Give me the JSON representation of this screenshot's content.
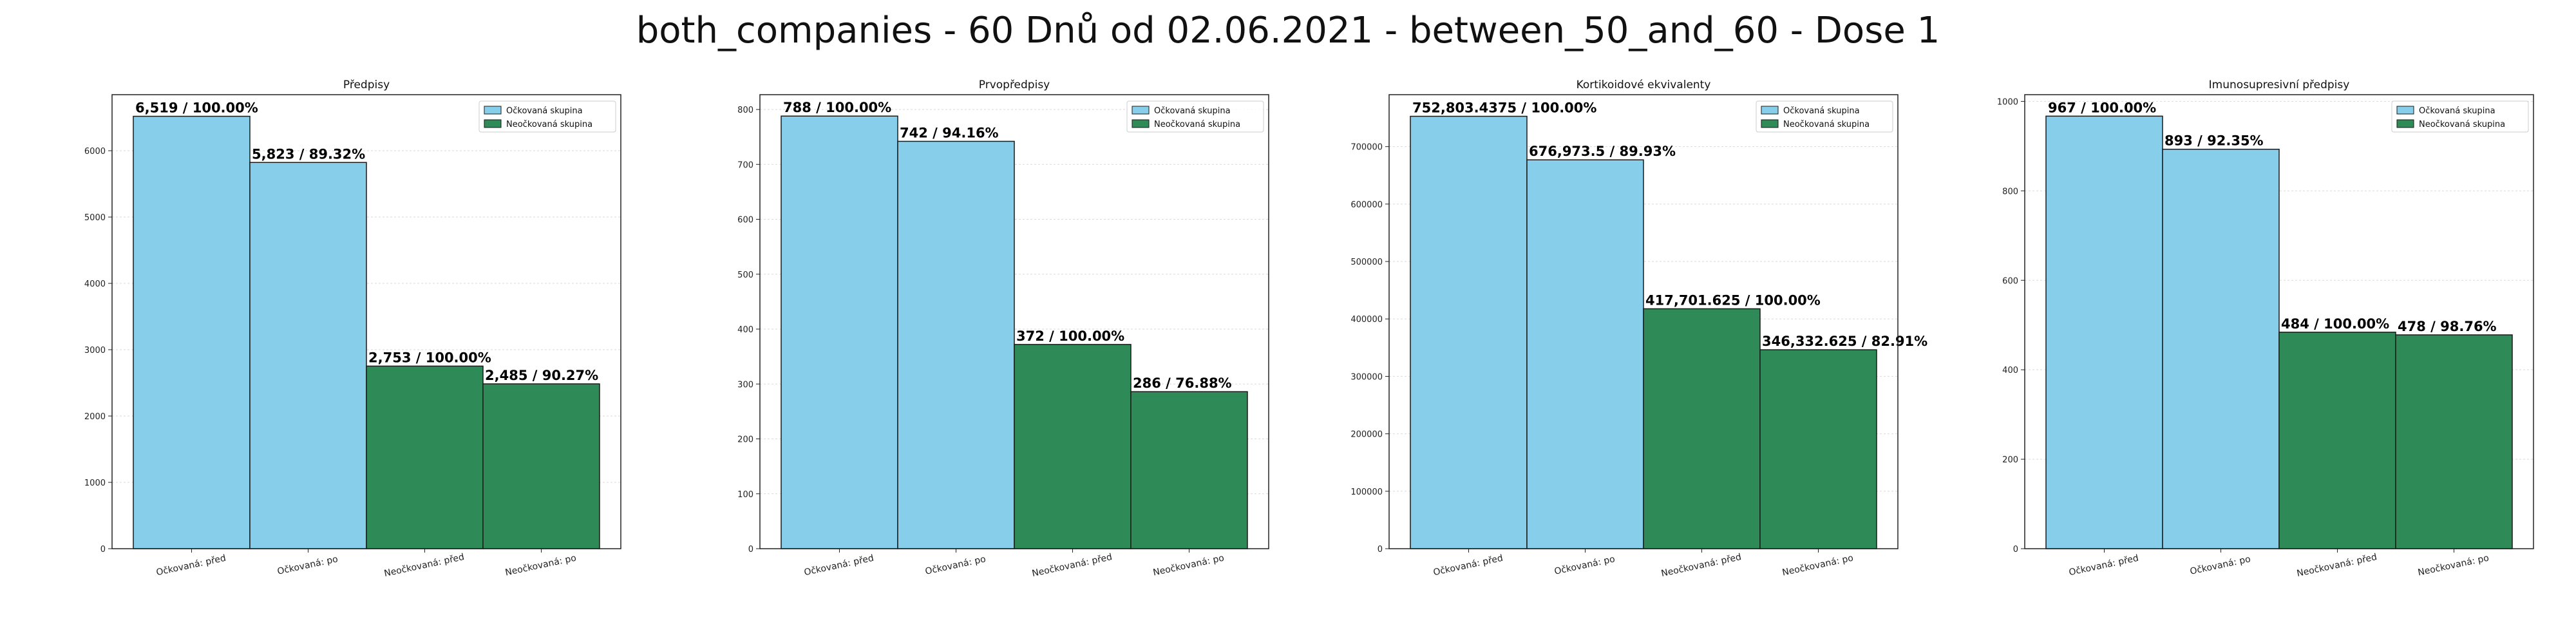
{
  "title": "both_companies - 60 Dnů od 02.06.2021 - between_50_and_60 - Dose 1",
  "colors": {
    "vaccinated": "#87CEEB",
    "unvaccinated": "#2E8B57"
  },
  "legend": [
    "Očkovaná skupina",
    "Neočkovaná skupina"
  ],
  "chart_data": [
    {
      "type": "bar",
      "title": "Předpisy",
      "categories": [
        "Očkovaná: před",
        "Očkovaná: po",
        "Neočkovaná: před",
        "Neočkovaná: po"
      ],
      "values": [
        6519,
        5823,
        2753,
        2485
      ],
      "labels": [
        "6,519 / 100.00%",
        "5,823 / 89.32%",
        "2,753 / 100.00%",
        "2,485 / 90.27%"
      ],
      "yticks": [
        0,
        1000,
        2000,
        3000,
        4000,
        5000,
        6000
      ],
      "ylim": [
        0,
        6845
      ],
      "legend_position": "top-right",
      "grid": true
    },
    {
      "type": "bar",
      "title": "Prvopředpisy",
      "categories": [
        "Očkovaná: před",
        "Očkovaná: po",
        "Neočkovaná: před",
        "Neočkovaná: po"
      ],
      "values": [
        788,
        742,
        372,
        286
      ],
      "labels": [
        "788 / 100.00%",
        "742 / 94.16%",
        "372 / 100.00%",
        "286 / 76.88%"
      ],
      "yticks": [
        0,
        100,
        200,
        300,
        400,
        500,
        600,
        700,
        800
      ],
      "ylim": [
        0,
        827
      ],
      "legend_position": "top-right",
      "grid": true
    },
    {
      "type": "bar",
      "title": "Kortikoidové ekvivalenty",
      "categories": [
        "Očkovaná: před",
        "Očkovaná: po",
        "Neočkovaná: před",
        "Neočkovaná: po"
      ],
      "values": [
        752803.4375,
        676973.5,
        417701.625,
        346332.625
      ],
      "labels": [
        "752,803.4375 / 100.00%",
        "676,973.5 / 89.93%",
        "417,701.625 / 100.00%",
        "346,332.625 / 82.91%"
      ],
      "yticks": [
        0,
        100000,
        200000,
        300000,
        400000,
        500000,
        600000,
        700000
      ],
      "ylim": [
        0,
        790444
      ],
      "legend_position": "top-right",
      "grid": true
    },
    {
      "type": "bar",
      "title": "Imunosupresivní předpisy",
      "categories": [
        "Očkovaná: před",
        "Očkovaná: po",
        "Neočkovaná: před",
        "Neočkovaná: po"
      ],
      "values": [
        967,
        893,
        484,
        478
      ],
      "labels": [
        "967 / 100.00%",
        "893 / 92.35%",
        "484 / 100.00%",
        "478 / 98.76%"
      ],
      "yticks": [
        0,
        200,
        400,
        600,
        800,
        1000
      ],
      "ylim": [
        0,
        1015
      ],
      "legend_position": "top-right",
      "grid": true
    }
  ]
}
